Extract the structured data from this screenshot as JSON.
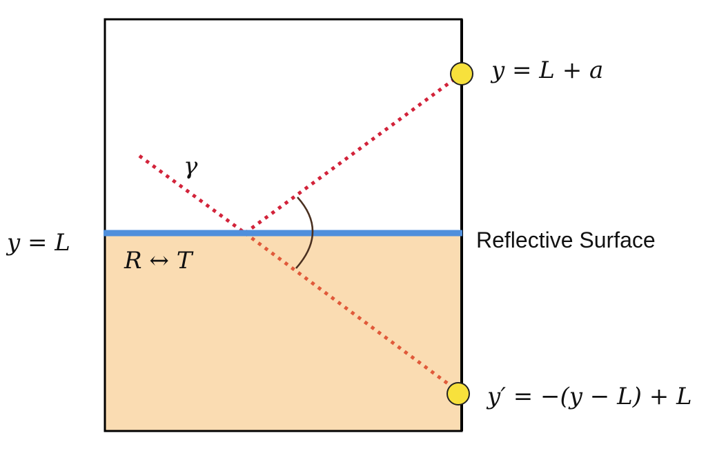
{
  "labels": {
    "top_point": "y = L + a",
    "surface_level": "y = L",
    "surface_name": "Reflective Surface",
    "region_swap": "R ↔ T",
    "ray_angle": "γ",
    "image_point": "y′ = −(y − L) + L"
  },
  "colors": {
    "region_fill": "#fadcb2",
    "surface_line": "#4f8fdc",
    "ray": "#d2233a",
    "ray_lower": "#e05a3a",
    "point_fill": "#f7e13c",
    "frame": "#000000"
  }
}
